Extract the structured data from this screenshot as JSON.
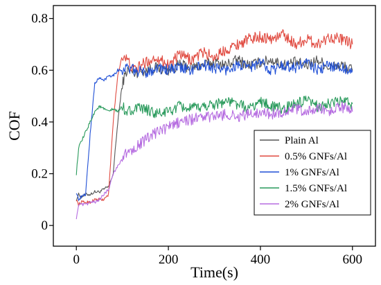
{
  "chart_data": {
    "type": "line",
    "xlabel": "Time(s)",
    "ylabel": "COF",
    "xlim": [
      -50,
      650
    ],
    "ylim": [
      -0.08,
      0.85
    ],
    "xticks": [
      0,
      200,
      400,
      600
    ],
    "xtick_labels": [
      "0",
      "200",
      "400",
      "600"
    ],
    "yticks": [
      0,
      0.2,
      0.4,
      0.6,
      0.8
    ],
    "ytick_labels": [
      "0",
      "0.2",
      "0.4",
      "0.6",
      "0.8"
    ],
    "grid": false,
    "legend_position": "bottom-right",
    "x": [
      0,
      5,
      10,
      20,
      30,
      40,
      50,
      60,
      70,
      80,
      90,
      100,
      110,
      125,
      150,
      175,
      200,
      225,
      250,
      275,
      300,
      325,
      350,
      375,
      400,
      425,
      450,
      475,
      500,
      525,
      550,
      575,
      600
    ],
    "series": [
      {
        "name": "Plain Al",
        "color": "#555555",
        "values": [
          0.1,
          0.12,
          0.11,
          0.12,
          0.12,
          0.13,
          0.13,
          0.14,
          0.15,
          0.2,
          0.4,
          0.55,
          0.6,
          0.59,
          0.6,
          0.61,
          0.6,
          0.62,
          0.61,
          0.62,
          0.63,
          0.62,
          0.64,
          0.62,
          0.63,
          0.64,
          0.62,
          0.63,
          0.62,
          0.64,
          0.61,
          0.62,
          0.6
        ]
      },
      {
        "name": "0.5% GNFs/Al",
        "color": "#e0493f",
        "values": [
          0.1,
          0.08,
          0.09,
          0.09,
          0.09,
          0.1,
          0.1,
          0.1,
          0.12,
          0.4,
          0.58,
          0.66,
          0.64,
          0.6,
          0.63,
          0.65,
          0.62,
          0.66,
          0.64,
          0.67,
          0.65,
          0.68,
          0.7,
          0.72,
          0.73,
          0.72,
          0.74,
          0.7,
          0.72,
          0.7,
          0.73,
          0.72,
          0.7
        ]
      },
      {
        "name": "1% GNFs/Al",
        "color": "#1f4fd6",
        "values": [
          0.13,
          0.1,
          0.11,
          0.12,
          0.35,
          0.55,
          0.57,
          0.56,
          0.58,
          0.58,
          0.6,
          0.6,
          0.61,
          0.6,
          0.59,
          0.61,
          0.6,
          0.61,
          0.6,
          0.62,
          0.61,
          0.6,
          0.62,
          0.61,
          0.63,
          0.6,
          0.62,
          0.61,
          0.63,
          0.6,
          0.62,
          0.61,
          0.6
        ]
      },
      {
        "name": "1.5% GNFs/Al",
        "color": "#27995a",
        "values": [
          0.2,
          0.3,
          0.32,
          0.36,
          0.4,
          0.44,
          0.46,
          0.45,
          0.44,
          0.45,
          0.44,
          0.46,
          0.44,
          0.45,
          0.45,
          0.43,
          0.44,
          0.46,
          0.45,
          0.46,
          0.47,
          0.48,
          0.47,
          0.45,
          0.48,
          0.46,
          0.45,
          0.47,
          0.48,
          0.46,
          0.47,
          0.48,
          0.47
        ]
      },
      {
        "name": "2% GNFs/Al",
        "color": "#b56be0",
        "values": [
          0.03,
          0.08,
          0.08,
          0.08,
          0.09,
          0.09,
          0.1,
          0.12,
          0.14,
          0.2,
          0.23,
          0.26,
          0.28,
          0.3,
          0.33,
          0.36,
          0.38,
          0.4,
          0.41,
          0.42,
          0.42,
          0.43,
          0.42,
          0.43,
          0.44,
          0.43,
          0.44,
          0.45,
          0.44,
          0.45,
          0.44,
          0.46,
          0.44
        ]
      }
    ]
  }
}
